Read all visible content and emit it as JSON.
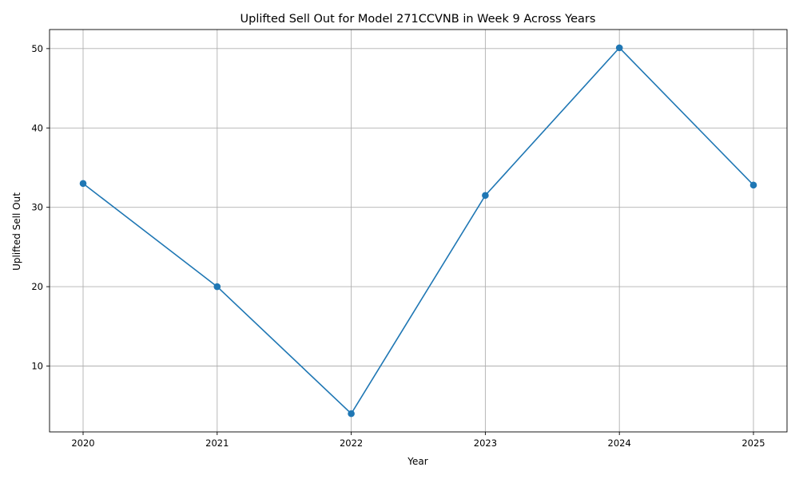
{
  "chart_data": {
    "type": "line",
    "title": "Uplifted Sell Out for Model 271CCVNB in Week 9 Across Years",
    "xlabel": "Year",
    "ylabel": "Uplifted Sell Out",
    "categories": [
      "2020",
      "2021",
      "2022",
      "2023",
      "2024",
      "2025"
    ],
    "series": [
      {
        "name": "Uplifted Sell Out",
        "values": [
          33.0,
          20.0,
          4.0,
          31.5,
          50.1,
          32.8
        ],
        "color": "#1f77b4",
        "marker": "circle"
      }
    ],
    "y_ticks": [
      10,
      20,
      30,
      40,
      50
    ],
    "ylim": [
      1.7,
      52.4
    ],
    "grid": true,
    "legend": "none"
  }
}
